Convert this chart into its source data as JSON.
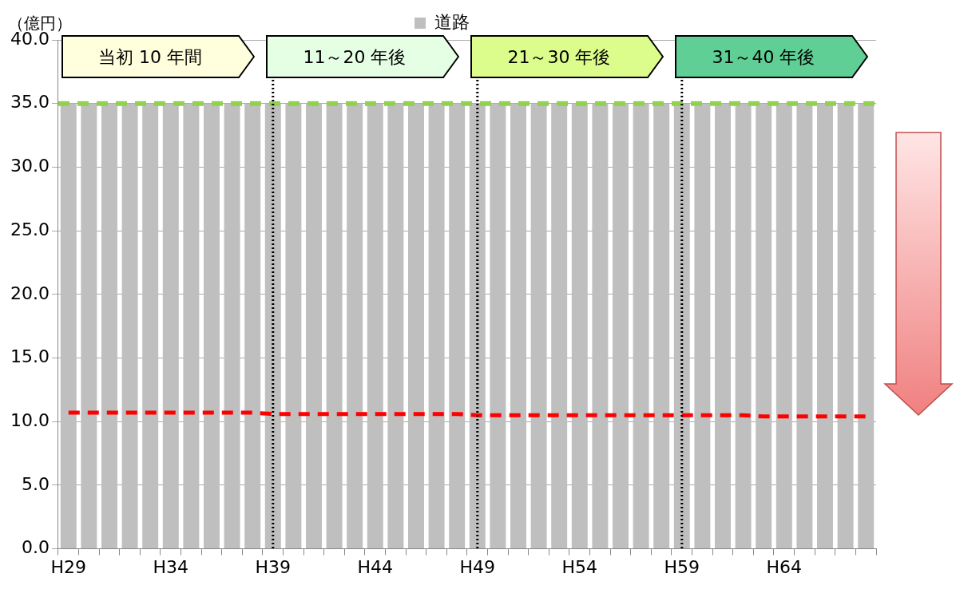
{
  "chart_data": {
    "type": "bar",
    "ylabel": "（億円）",
    "categories": [
      "H29",
      null,
      null,
      null,
      null,
      "H34",
      null,
      null,
      null,
      null,
      "H39",
      null,
      null,
      null,
      null,
      "H44",
      null,
      null,
      null,
      null,
      "H49",
      null,
      null,
      null,
      null,
      "H54",
      null,
      null,
      null,
      null,
      "H59",
      null,
      null,
      null,
      null,
      "H64",
      null,
      null,
      null,
      null
    ],
    "series": [
      {
        "name": "道路",
        "color": "#bfbfbf",
        "values": [
          35,
          35,
          35,
          35,
          35,
          35,
          35,
          35,
          35,
          35,
          35,
          35,
          35,
          35,
          35,
          35,
          35,
          35,
          35,
          35,
          35,
          35,
          35,
          35,
          35,
          35,
          35,
          35,
          35,
          35,
          35,
          35,
          35,
          35,
          35,
          35,
          35,
          35,
          35,
          35
        ]
      },
      {
        "type": "line",
        "color": "#ff0000",
        "line_style": "dashed",
        "marker": "none",
        "values": [
          10.7,
          10.7,
          10.7,
          10.7,
          10.7,
          10.7,
          10.7,
          10.7,
          10.7,
          10.7,
          10.6,
          10.6,
          10.6,
          10.6,
          10.6,
          10.6,
          10.6,
          10.6,
          10.6,
          10.6,
          10.5,
          10.5,
          10.5,
          10.5,
          10.5,
          10.5,
          10.5,
          10.5,
          10.5,
          10.5,
          10.5,
          10.5,
          10.5,
          10.5,
          10.4,
          10.4,
          10.4,
          10.4,
          10.4,
          10.4
        ]
      }
    ],
    "ylim": [
      0,
      40
    ],
    "yticks": [
      {
        "value": 0,
        "label": "0.0"
      },
      {
        "value": 5,
        "label": "5.0"
      },
      {
        "value": 10,
        "label": "10.0"
      },
      {
        "value": 15,
        "label": "15.0"
      },
      {
        "value": 20,
        "label": "20.0"
      },
      {
        "value": 25,
        "label": "25.0"
      },
      {
        "value": 30,
        "label": "30.0"
      },
      {
        "value": 35,
        "label": "35.0"
      },
      {
        "value": 40,
        "label": "40.0"
      }
    ],
    "grid": "y",
    "legend": "top",
    "ref_lines": [
      {
        "axis": "y",
        "value": 35,
        "color": "#92d050",
        "line_style": "dashed"
      },
      {
        "axis": "x",
        "value": "H39",
        "color": "#000000",
        "line_style": "dotted"
      },
      {
        "axis": "x",
        "value": "H49",
        "color": "#000000",
        "line_style": "dotted"
      },
      {
        "axis": "x",
        "value": "H59",
        "color": "#000000",
        "line_style": "dotted"
      }
    ],
    "annotations": [
      "当初 10 年間",
      "11～20 年後",
      "21～30 年後",
      "31～40 年後"
    ]
  }
}
